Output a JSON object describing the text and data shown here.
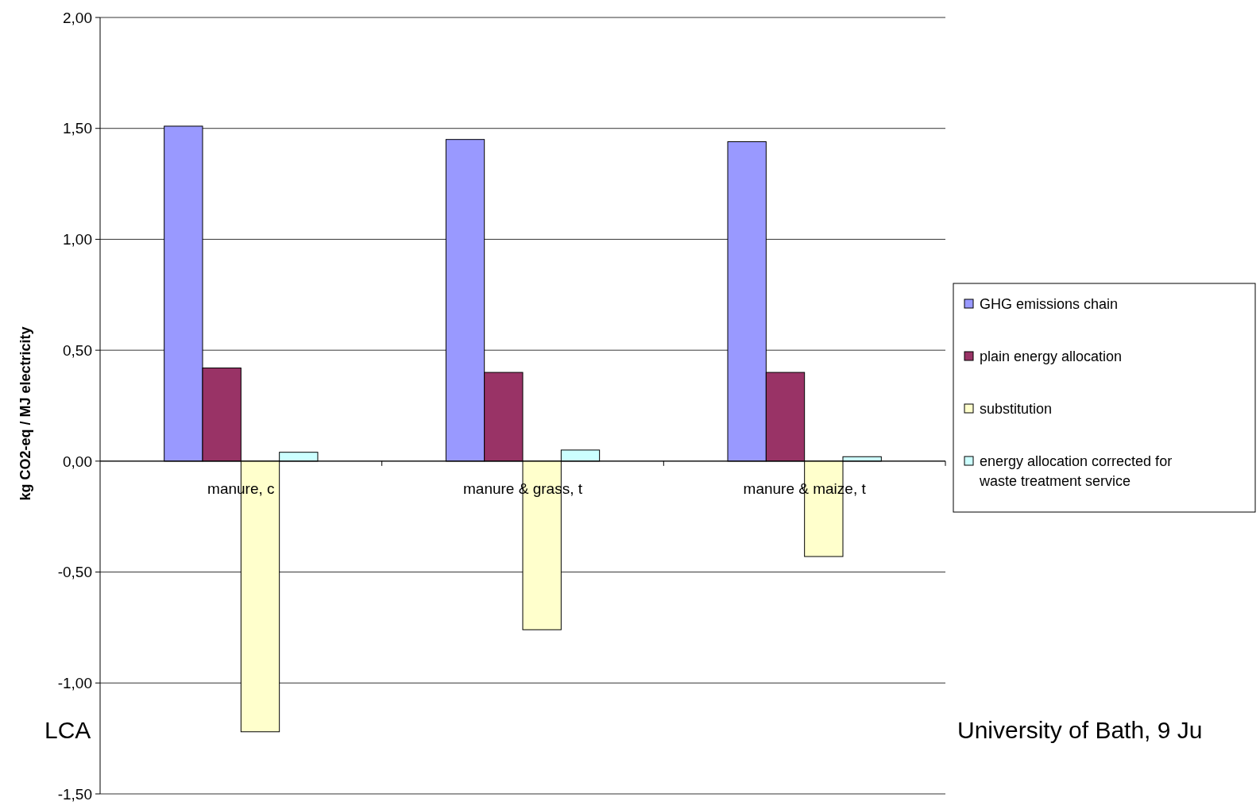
{
  "chart_data": {
    "type": "bar",
    "ylabel": "kg CO2-eq / MJ electricity",
    "categories": [
      "manure, c",
      "manure & grass, t",
      "manure & maize, t"
    ],
    "series": [
      {
        "name": "GHG emissions chain",
        "color": "#9999ff",
        "values": [
          1.51,
          1.45,
          1.44
        ]
      },
      {
        "name": "plain energy allocation",
        "color": "#993366",
        "values": [
          0.42,
          0.4,
          0.4
        ]
      },
      {
        "name": "substitution",
        "color": "#ffffcc",
        "values": [
          -1.22,
          -0.76,
          -0.43
        ]
      },
      {
        "name": "energy allocation corrected for waste treatment service",
        "color": "#ccffff",
        "values": [
          0.04,
          0.05,
          0.02
        ]
      }
    ],
    "ylim": [
      -1.5,
      2
    ],
    "yticks": [
      {
        "value": -1.5,
        "label": "-1,50"
      },
      {
        "value": -1,
        "label": "-1,00"
      },
      {
        "value": -0.5,
        "label": "-0,50"
      },
      {
        "value": 0,
        "label": "0,00"
      },
      {
        "value": 0.5,
        "label": "0,50"
      },
      {
        "value": 1,
        "label": "1,00"
      },
      {
        "value": 1.5,
        "label": "1,50"
      },
      {
        "value": 2,
        "label": "2,00"
      }
    ],
    "grid": "y",
    "legend": "right",
    "annotations": [
      "LCA",
      "University of Bath, 9 Ju"
    ]
  }
}
